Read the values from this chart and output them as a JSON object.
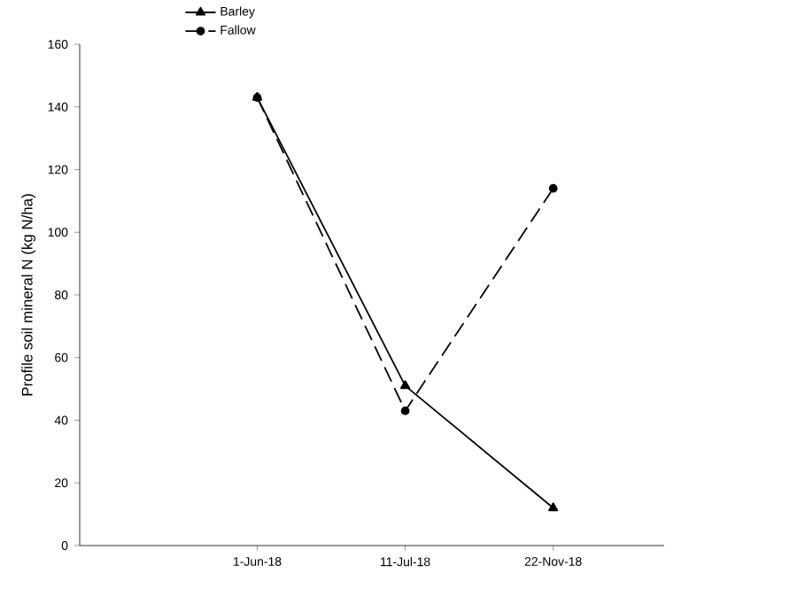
{
  "chart_data": {
    "type": "line",
    "ylabel": "Profile soil mineral N (kg N/ha)",
    "categories": [
      "1-Jun-18",
      "11-Jul-18",
      "22-Nov-18"
    ],
    "series": [
      {
        "name": "Barley",
        "color": "#000000",
        "values": [
          143,
          51,
          12
        ],
        "marker": "triangle",
        "line_style": "solid"
      },
      {
        "name": "Fallow",
        "color": "#000000",
        "values": [
          143,
          43,
          114
        ],
        "marker": "circle",
        "line_style": "dashed"
      }
    ],
    "ylim": [
      0,
      160
    ],
    "yticks": [
      0,
      20,
      40,
      60,
      80,
      100,
      120,
      140,
      160
    ],
    "grid": false,
    "legend": "top left"
  }
}
